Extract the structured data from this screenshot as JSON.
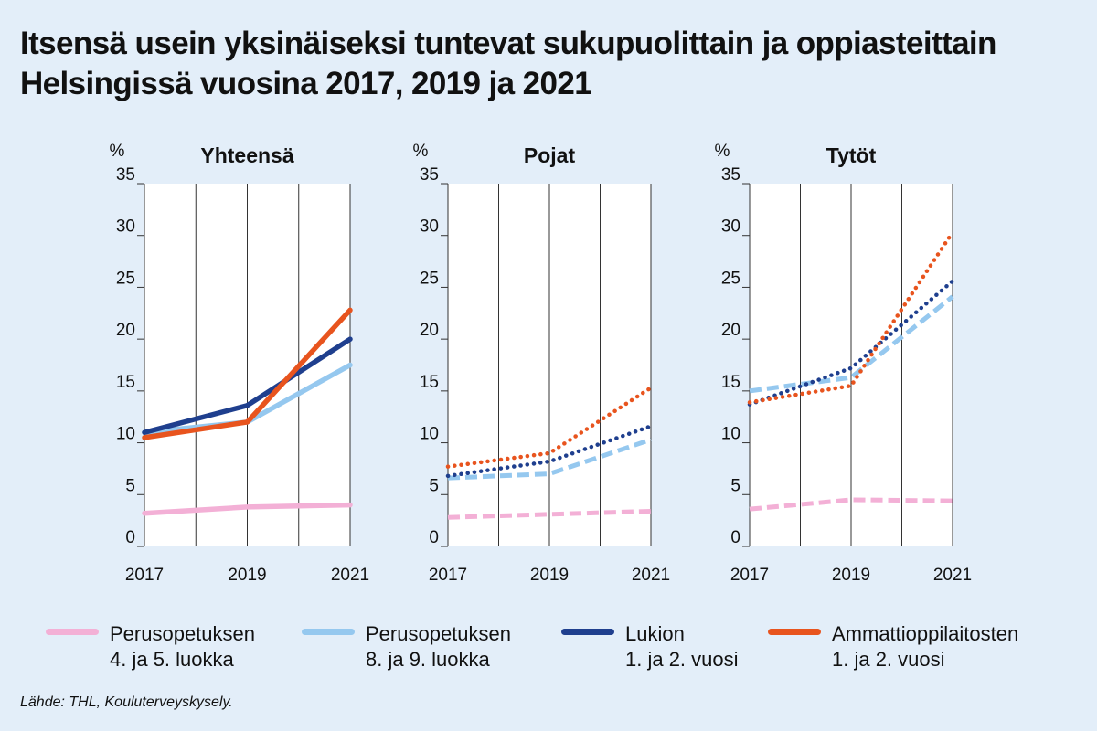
{
  "title_lines": [
    "Itsensä usein yksinäiseksi tuntevat sukupuolittain ja oppiasteittain",
    "Helsingissä vuosina 2017, 2019 ja 2021"
  ],
  "source": "Lähde: THL, Kouluterveyskysely.",
  "colors": {
    "perus_4_5": "#f3b0d6",
    "perus_8_9": "#95c8ef",
    "lukio": "#1f3f8e",
    "ammatti": "#e8541e",
    "grid": "#333333",
    "plot_bg": "#ffffff"
  },
  "legend": [
    {
      "key": "perus_4_5",
      "line1": "Perusopetuksen",
      "line2": "4. ja 5. luokka"
    },
    {
      "key": "perus_8_9",
      "line1": "Perusopetuksen",
      "line2": "8. ja 9. luokka"
    },
    {
      "key": "lukio",
      "line1": "Lukion",
      "line2": "1. ja 2. vuosi"
    },
    {
      "key": "ammatti",
      "line1": "Ammattioppilaitosten",
      "line2": "1. ja 2. vuosi"
    }
  ],
  "chart_data": [
    {
      "type": "line",
      "title": "Yhteensä",
      "ylabel": "%",
      "x": [
        "2017",
        "2019",
        "2021"
      ],
      "y_ticks": [
        0,
        5,
        10,
        15,
        20,
        25,
        30,
        35
      ],
      "ylim": [
        0,
        35
      ],
      "grid": true,
      "series": [
        {
          "key": "perus_4_5",
          "style": "solid",
          "values": [
            3.2,
            3.8,
            4.0
          ]
        },
        {
          "key": "perus_8_9",
          "style": "solid",
          "values": [
            11.0,
            12.0,
            17.5
          ]
        },
        {
          "key": "lukio",
          "style": "solid",
          "values": [
            11.0,
            13.6,
            20.0
          ]
        },
        {
          "key": "ammatti",
          "style": "solid",
          "values": [
            10.5,
            12.0,
            22.8
          ]
        }
      ]
    },
    {
      "type": "line",
      "title": "Pojat",
      "ylabel": "%",
      "x": [
        "2017",
        "2019",
        "2021"
      ],
      "y_ticks": [
        0,
        5,
        10,
        15,
        20,
        25,
        30,
        35
      ],
      "ylim": [
        0,
        35
      ],
      "grid": true,
      "series": [
        {
          "key": "perus_4_5",
          "style": "dashed",
          "values": [
            2.8,
            3.1,
            3.4
          ]
        },
        {
          "key": "perus_8_9",
          "style": "dashed",
          "values": [
            6.6,
            7.0,
            10.3
          ]
        },
        {
          "key": "lukio",
          "style": "dotted",
          "values": [
            6.8,
            8.2,
            11.6
          ]
        },
        {
          "key": "ammatti",
          "style": "dotted",
          "values": [
            7.7,
            9.0,
            15.3
          ]
        }
      ]
    },
    {
      "type": "line",
      "title": "Tytöt",
      "ylabel": "%",
      "x": [
        "2017",
        "2019",
        "2021"
      ],
      "y_ticks": [
        0,
        5,
        10,
        15,
        20,
        25,
        30,
        35
      ],
      "ylim": [
        0,
        35
      ],
      "grid": true,
      "series": [
        {
          "key": "perus_4_5",
          "style": "dashed",
          "values": [
            3.6,
            4.5,
            4.4
          ]
        },
        {
          "key": "perus_8_9",
          "style": "dashed",
          "values": [
            15.0,
            16.3,
            24.1
          ]
        },
        {
          "key": "lukio",
          "style": "dotted",
          "values": [
            13.7,
            17.2,
            25.6
          ]
        },
        {
          "key": "ammatti",
          "style": "dotted",
          "values": [
            13.9,
            15.5,
            30.3
          ]
        }
      ]
    }
  ]
}
